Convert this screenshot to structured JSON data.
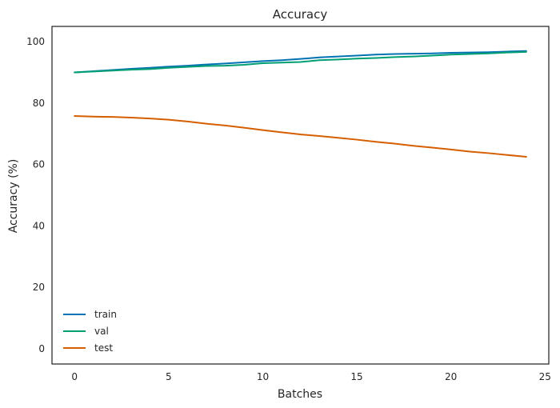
{
  "chart_data": {
    "type": "line",
    "title": "Accuracy",
    "xlabel": "Batches",
    "ylabel": "Accuracy (%)",
    "xlim": [
      -1.2,
      25.2
    ],
    "ylim": [
      -5,
      105
    ],
    "xticks": [
      0,
      5,
      10,
      15,
      20,
      25
    ],
    "yticks": [
      0,
      20,
      40,
      60,
      80,
      100
    ],
    "grid": false,
    "legend_position": "lower-left",
    "x": [
      0,
      1,
      2,
      3,
      4,
      5,
      6,
      7,
      8,
      9,
      10,
      11,
      12,
      13,
      14,
      15,
      16,
      17,
      18,
      19,
      20,
      21,
      22,
      23,
      24
    ],
    "series": [
      {
        "name": "train",
        "color": "#0072b2",
        "values": [
          90.0,
          90.4,
          90.8,
          91.2,
          91.5,
          91.9,
          92.2,
          92.6,
          92.9,
          93.3,
          93.7,
          94.0,
          94.4,
          94.9,
          95.2,
          95.5,
          95.8,
          96.0,
          96.1,
          96.2,
          96.4,
          96.5,
          96.6,
          96.8,
          97.0
        ]
      },
      {
        "name": "val",
        "color": "#009e73",
        "values": [
          90.0,
          90.3,
          90.6,
          90.9,
          91.1,
          91.5,
          91.8,
          92.1,
          92.2,
          92.5,
          93.0,
          93.2,
          93.4,
          94.0,
          94.2,
          94.5,
          94.7,
          95.0,
          95.2,
          95.5,
          95.8,
          96.0,
          96.2,
          96.5,
          96.7
        ]
      },
      {
        "name": "test",
        "color": "#d55e00",
        "values": [
          75.8,
          75.6,
          75.5,
          75.3,
          75.0,
          74.6,
          74.0,
          73.3,
          72.7,
          72.0,
          71.2,
          70.5,
          69.8,
          69.3,
          68.7,
          68.1,
          67.4,
          66.8,
          66.1,
          65.5,
          64.9,
          64.2,
          63.7,
          63.1,
          62.5
        ]
      }
    ]
  }
}
